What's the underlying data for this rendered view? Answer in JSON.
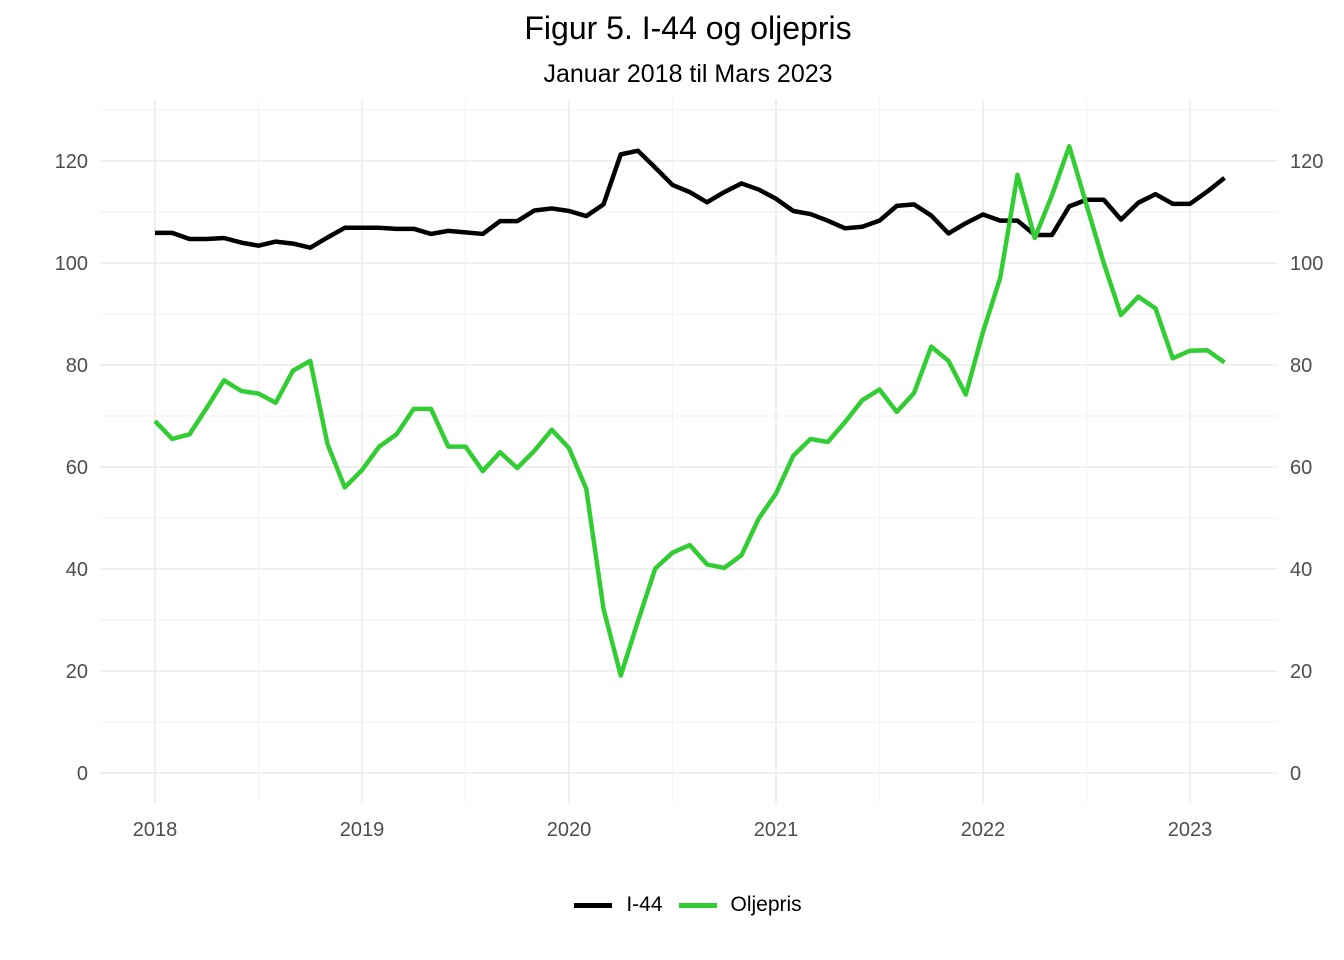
{
  "chart_data": {
    "type": "line",
    "title": "Figur 5. I-44 og oljepris",
    "subtitle": "Januar 2018 til Mars 2023",
    "x_ticks": [
      "2018",
      "2019",
      "2020",
      "2021",
      "2022",
      "2023"
    ],
    "y_ticks": [
      "0",
      "20",
      "40",
      "60",
      "80",
      "100",
      "120"
    ],
    "ylim": [
      -5,
      130
    ],
    "secondary_axis": true,
    "grid": true,
    "legend_position": "bottom",
    "x": [
      "2018-01",
      "2018-02",
      "2018-03",
      "2018-04",
      "2018-05",
      "2018-06",
      "2018-07",
      "2018-08",
      "2018-09",
      "2018-10",
      "2018-11",
      "2018-12",
      "2019-01",
      "2019-02",
      "2019-03",
      "2019-04",
      "2019-05",
      "2019-06",
      "2019-07",
      "2019-08",
      "2019-09",
      "2019-10",
      "2019-11",
      "2019-12",
      "2020-01",
      "2020-02",
      "2020-03",
      "2020-04",
      "2020-05",
      "2020-06",
      "2020-07",
      "2020-08",
      "2020-09",
      "2020-10",
      "2020-11",
      "2020-12",
      "2021-01",
      "2021-02",
      "2021-03",
      "2021-04",
      "2021-05",
      "2021-06",
      "2021-07",
      "2021-08",
      "2021-09",
      "2021-10",
      "2021-11",
      "2021-12",
      "2022-01",
      "2022-02",
      "2022-03",
      "2022-04",
      "2022-05",
      "2022-06",
      "2022-07",
      "2022-08",
      "2022-09",
      "2022-10",
      "2022-11",
      "2022-12",
      "2023-01",
      "2023-02",
      "2023-03"
    ],
    "series": [
      {
        "name": "I-44",
        "color": "#000000",
        "values": [
          105.9,
          105.9,
          104.7,
          104.7,
          104.9,
          104.0,
          103.4,
          104.2,
          103.8,
          103.0,
          105.0,
          106.9,
          106.9,
          106.9,
          106.7,
          106.7,
          105.7,
          106.3,
          106.0,
          105.7,
          108.2,
          108.2,
          110.3,
          110.7,
          110.2,
          109.2,
          111.5,
          121.3,
          122.0,
          118.7,
          115.3,
          113.9,
          111.9,
          113.9,
          115.6,
          114.4,
          112.6,
          110.2,
          109.6,
          108.3,
          106.8,
          107.1,
          108.3,
          111.2,
          111.5,
          109.3,
          105.8,
          107.8,
          109.5,
          108.3,
          108.3,
          105.5,
          105.5,
          111.1,
          112.4,
          112.4,
          108.5,
          111.8,
          113.5,
          111.6,
          111.6,
          114.0,
          116.7
        ]
      },
      {
        "name": "Oljepris",
        "color": "#32cd32",
        "values": [
          69.0,
          65.5,
          66.4,
          71.6,
          77.0,
          74.9,
          74.4,
          72.6,
          78.9,
          80.8,
          64.5,
          56.0,
          59.4,
          64.0,
          66.4,
          71.4,
          71.4,
          64.0,
          64.0,
          59.2,
          62.9,
          59.8,
          63.2,
          67.3,
          63.7,
          55.7,
          32.2,
          19.1,
          29.8,
          40.1,
          43.2,
          44.7,
          40.9,
          40.2,
          42.7,
          49.9,
          54.8,
          62.2,
          65.5,
          64.9,
          68.8,
          73.1,
          75.2,
          70.8,
          74.5,
          83.6,
          80.8,
          74.2,
          86.5,
          97.1,
          117.3,
          104.9,
          113.3,
          122.9,
          111.4,
          100.0,
          89.8,
          93.4,
          91.1,
          81.3,
          82.8,
          82.9,
          80.5
        ]
      }
    ]
  }
}
